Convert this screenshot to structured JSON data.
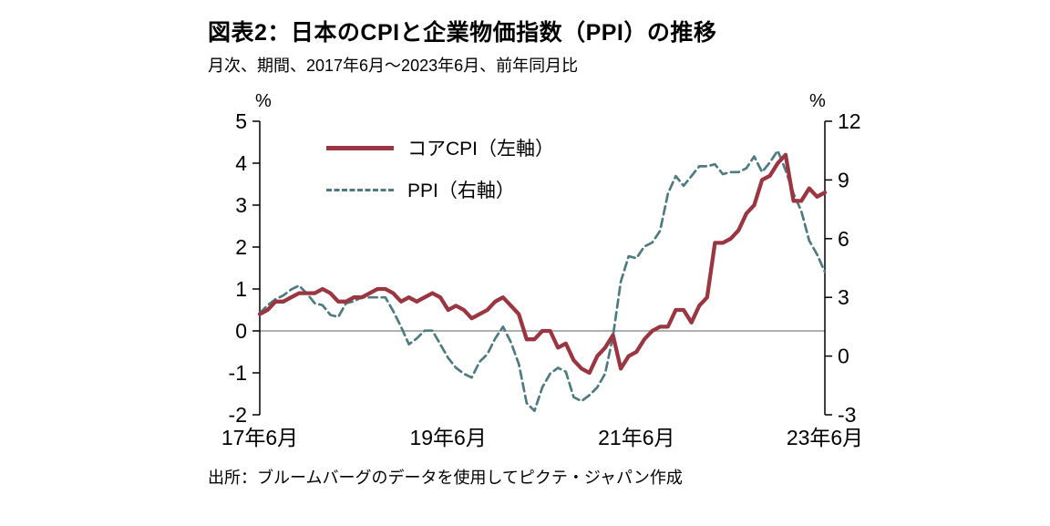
{
  "title": "図表2：日本のCPIと企業物価指数（PPI）の推移",
  "subtitle": "月次、期間、2017年6月～2023年6月、前年同月比",
  "source": "出所：ブルームバーグのデータを使用してピクテ・ジャパン作成",
  "colors": {
    "cpi_line": "#9a3642",
    "ppi_line": "#4f7b80",
    "axis": "#000000",
    "zero_line": "#808080"
  },
  "chart_data": {
    "type": "line",
    "title": "図表2：日本のCPIと企業物価指数（PPI）の推移",
    "x_start": "2017年6月",
    "x_end": "2023年6月",
    "n_points": 73,
    "x_tick_labels": [
      "17年6月",
      "19年6月",
      "21年6月",
      "23年6月"
    ],
    "x_tick_positions": [
      0,
      24,
      48,
      72
    ],
    "left_axis": {
      "unit": "%",
      "ticks": [
        5,
        4,
        3,
        2,
        1,
        0,
        -1,
        -2
      ],
      "range": [
        -2,
        5
      ]
    },
    "right_axis": {
      "unit": "%",
      "ticks": [
        12,
        9,
        6,
        3,
        0,
        -3
      ],
      "range": [
        -3,
        12
      ]
    },
    "grid": "zero-line-only",
    "legend_position": "top-left-inside",
    "series": [
      {
        "name": "コアCPI（左軸）",
        "axis": "left",
        "line": "solid",
        "color": "#9a3642",
        "values": [
          0.4,
          0.5,
          0.7,
          0.7,
          0.8,
          0.9,
          0.9,
          0.9,
          1.0,
          0.9,
          0.7,
          0.7,
          0.8,
          0.8,
          0.9,
          1.0,
          1.0,
          0.9,
          0.7,
          0.8,
          0.7,
          0.8,
          0.9,
          0.8,
          0.5,
          0.6,
          0.5,
          0.3,
          0.4,
          0.5,
          0.7,
          0.8,
          0.6,
          0.4,
          -0.2,
          -0.2,
          0.0,
          0.0,
          -0.4,
          -0.3,
          -0.7,
          -0.9,
          -1.0,
          -0.6,
          -0.4,
          -0.1,
          -0.9,
          -0.6,
          -0.5,
          -0.2,
          0.0,
          0.1,
          0.1,
          0.5,
          0.5,
          0.2,
          0.6,
          0.8,
          2.1,
          2.1,
          2.2,
          2.4,
          2.8,
          3.0,
          3.6,
          3.7,
          4.0,
          4.2,
          3.1,
          3.1,
          3.4,
          3.2,
          3.3
        ]
      },
      {
        "name": "PPI（右軸）",
        "axis": "right",
        "line": "dashed",
        "color": "#4f7b80",
        "values": [
          2.2,
          2.6,
          2.9,
          3.1,
          3.4,
          3.6,
          3.2,
          2.7,
          2.6,
          2.1,
          2.0,
          2.7,
          2.8,
          3.0,
          3.0,
          3.0,
          3.0,
          2.3,
          1.5,
          0.6,
          0.9,
          1.3,
          1.3,
          0.6,
          -0.1,
          -0.6,
          -0.9,
          -1.1,
          -0.3,
          0.1,
          0.9,
          1.5,
          0.7,
          -0.4,
          -2.4,
          -2.8,
          -1.6,
          -0.9,
          -0.6,
          -0.8,
          -2.1,
          -2.3,
          -2.0,
          -1.6,
          -0.9,
          1.0,
          3.8,
          5.1,
          5.0,
          5.6,
          5.8,
          6.4,
          8.3,
          9.2,
          8.7,
          9.2,
          9.7,
          9.7,
          9.8,
          9.3,
          9.4,
          9.4,
          9.6,
          10.2,
          9.4,
          9.9,
          10.5,
          9.5,
          8.3,
          7.4,
          5.9,
          5.2,
          4.3
        ]
      }
    ]
  }
}
